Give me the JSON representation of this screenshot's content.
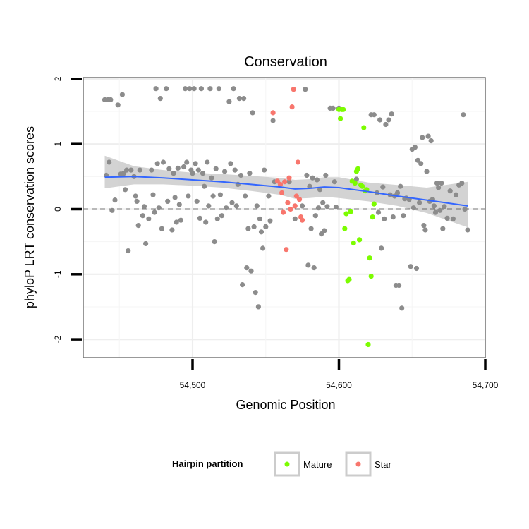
{
  "chart_data": {
    "type": "scatter",
    "title": "Conservation",
    "xlabel": "Genomic Position",
    "ylabel": "phyloP LRT conservation scores",
    "xlim": [
      54430,
      54700
    ],
    "ylim": [
      -2.3,
      2.0
    ],
    "xticks": [
      54500,
      54600,
      54700
    ],
    "xtick_labels": [
      "54,500",
      "54,600",
      "54,700"
    ],
    "yticks": [
      -2,
      -1,
      0,
      1,
      2
    ],
    "ytick_labels": [
      "-2",
      "-1",
      "0",
      "1",
      "2"
    ],
    "grid": true,
    "reference_line": {
      "y": 0,
      "style": "dashed"
    },
    "legend": {
      "title": "Hairpin partition",
      "placement": "bottom",
      "entries": [
        {
          "label": "Mature",
          "color": "#7cfc00"
        },
        {
          "label": "Star",
          "color": "#f8766d"
        }
      ]
    },
    "colors": {
      "other": "#8c8c8c",
      "Mature": "#7cfc00",
      "Star": "#f8766d",
      "smooth_line": "#3366ff",
      "band": "#c8c8c8"
    },
    "smooth": {
      "x": [
        54440,
        54460,
        54480,
        54500,
        54520,
        54540,
        54560,
        54570,
        54580,
        54590,
        54600,
        54620,
        54640,
        54660,
        54688
      ],
      "y": [
        0.49,
        0.5,
        0.48,
        0.45,
        0.42,
        0.38,
        0.34,
        0.31,
        0.32,
        0.34,
        0.33,
        0.27,
        0.2,
        0.14,
        0.05
      ],
      "lower": [
        0.32,
        0.38,
        0.38,
        0.36,
        0.33,
        0.28,
        0.22,
        0.16,
        0.17,
        0.19,
        0.17,
        0.12,
        0.05,
        -0.06,
        -0.28
      ],
      "upper": [
        0.82,
        0.66,
        0.6,
        0.56,
        0.54,
        0.51,
        0.48,
        0.45,
        0.46,
        0.49,
        0.49,
        0.41,
        0.37,
        0.33,
        0.42
      ]
    },
    "series": [
      {
        "name": "Other",
        "points": [
          [
            54440,
            1.68
          ],
          [
            54442,
            1.68
          ],
          [
            54444,
            1.68
          ],
          [
            54441,
            0.52
          ],
          [
            54443,
            0.72
          ],
          [
            54445,
            -0.02
          ],
          [
            54447,
            0.14
          ],
          [
            54449,
            1.6
          ],
          [
            54451,
            0.54
          ],
          [
            54453,
            0.55
          ],
          [
            54455,
            0.6
          ],
          [
            54454,
            0.3
          ],
          [
            54456,
            -0.64
          ],
          [
            54452,
            1.76
          ],
          [
            54458,
            0.6
          ],
          [
            54460,
            0.5
          ],
          [
            54461,
            0.2
          ],
          [
            54462,
            0.12
          ],
          [
            54463,
            -0.25
          ],
          [
            54464,
            0.6
          ],
          [
            54466,
            -0.1
          ],
          [
            54467,
            0.04
          ],
          [
            54468,
            -0.53
          ],
          [
            54470,
            -0.15
          ],
          [
            54472,
            0.6
          ],
          [
            54473,
            0.22
          ],
          [
            54474,
            -0.05
          ],
          [
            54475,
            1.85
          ],
          [
            54476,
            0.7
          ],
          [
            54477,
            0.02
          ],
          [
            54478,
            1.7
          ],
          [
            54479,
            -0.3
          ],
          [
            54480,
            0.72
          ],
          [
            54482,
            1.85
          ],
          [
            54483,
            0.12
          ],
          [
            54484,
            0.62
          ],
          [
            54486,
            -0.32
          ],
          [
            54487,
            0.55
          ],
          [
            54488,
            0.18
          ],
          [
            54489,
            -0.2
          ],
          [
            54490,
            0.63
          ],
          [
            54491,
            0.07
          ],
          [
            54492,
            -0.17
          ],
          [
            54494,
            0.65
          ],
          [
            54495,
            1.85
          ],
          [
            54496,
            0.72
          ],
          [
            54497,
            0.2
          ],
          [
            54498,
            1.85
          ],
          [
            54499,
            0.6
          ],
          [
            54500,
            0.55
          ],
          [
            54501,
            1.85
          ],
          [
            54502,
            0.7
          ],
          [
            54503,
            0.12
          ],
          [
            54504,
            0.6
          ],
          [
            54505,
            -0.14
          ],
          [
            54506,
            1.85
          ],
          [
            54507,
            0.55
          ],
          [
            54508,
            0.35
          ],
          [
            54509,
            -0.2
          ],
          [
            54510,
            0.72
          ],
          [
            54511,
            0.05
          ],
          [
            54512,
            1.85
          ],
          [
            54513,
            0.48
          ],
          [
            54514,
            0.2
          ],
          [
            54515,
            -0.5
          ],
          [
            54516,
            0.62
          ],
          [
            54517,
            -0.15
          ],
          [
            54518,
            1.85
          ],
          [
            54519,
            0.22
          ],
          [
            54520,
            -0.1
          ],
          [
            54522,
            0.58
          ],
          [
            54523,
            0.02
          ],
          [
            54525,
            1.65
          ],
          [
            54526,
            0.7
          ],
          [
            54527,
            0.1
          ],
          [
            54528,
            1.85
          ],
          [
            54529,
            0.6
          ],
          [
            54530,
            0.05
          ],
          [
            54531,
            0.38
          ],
          [
            54532,
            1.7
          ],
          [
            54533,
            0.52
          ],
          [
            54534,
            -1.16
          ],
          [
            54535,
            1.7
          ],
          [
            54536,
            0.2
          ],
          [
            54537,
            -0.9
          ],
          [
            54538,
            -0.3
          ],
          [
            54539,
            0.55
          ],
          [
            54540,
            -0.95
          ],
          [
            54541,
            1.48
          ],
          [
            54542,
            -0.27
          ],
          [
            54543,
            -1.28
          ],
          [
            54544,
            0.05
          ],
          [
            54545,
            -1.5
          ],
          [
            54546,
            -0.15
          ],
          [
            54547,
            -0.35
          ],
          [
            54548,
            -0.6
          ],
          [
            54549,
            0.6
          ],
          [
            54550,
            -0.27
          ],
          [
            54552,
            0.2
          ],
          [
            54553,
            -0.18
          ],
          [
            54555,
            1.36
          ],
          [
            54556,
            0.42
          ],
          [
            54566,
            0.42
          ],
          [
            54570,
            -0.15
          ],
          [
            54575,
            0.05
          ],
          [
            54577,
            1.84
          ],
          [
            54578,
            0.52
          ],
          [
            54579,
            -0.86
          ],
          [
            54580,
            0.35
          ],
          [
            54581,
            -0.3
          ],
          [
            54582,
            0.48
          ],
          [
            54583,
            -0.9
          ],
          [
            54584,
            -0.1
          ],
          [
            54585,
            0.45
          ],
          [
            54586,
            0.02
          ],
          [
            54587,
            0.3
          ],
          [
            54588,
            -0.38
          ],
          [
            54589,
            0.1
          ],
          [
            54590,
            -0.33
          ],
          [
            54591,
            0.52
          ],
          [
            54592,
            0.04
          ],
          [
            54594,
            1.55
          ],
          [
            54596,
            1.55
          ],
          [
            54597,
            0.42
          ],
          [
            54598,
            0.03
          ],
          [
            54600,
            1.55
          ],
          [
            54612,
            0.46
          ],
          [
            54622,
            1.45
          ],
          [
            54624,
            1.45
          ],
          [
            54626,
            0.25
          ],
          [
            54627,
            -0.05
          ],
          [
            54628,
            1.37
          ],
          [
            54629,
            -0.6
          ],
          [
            54630,
            0.34
          ],
          [
            54631,
            -0.15
          ],
          [
            54632,
            1.3
          ],
          [
            54634,
            1.37
          ],
          [
            54635,
            0.22
          ],
          [
            54636,
            1.46
          ],
          [
            54637,
            -0.12
          ],
          [
            54638,
            0.2
          ],
          [
            54639,
            -1.17
          ],
          [
            54640,
            0.25
          ],
          [
            54641,
            -1.17
          ],
          [
            54642,
            0.35
          ],
          [
            54643,
            -1.52
          ],
          [
            54644,
            -0.1
          ],
          [
            54645,
            0.16
          ],
          [
            54646,
            0.17
          ],
          [
            54648,
            0.15
          ],
          [
            54649,
            -0.88
          ],
          [
            54650,
            0.92
          ],
          [
            54651,
            0.02
          ],
          [
            54652,
            0.95
          ],
          [
            54653,
            -0.91
          ],
          [
            54654,
            0.75
          ],
          [
            54655,
            0.1
          ],
          [
            54656,
            0.7
          ],
          [
            54657,
            1.1
          ],
          [
            54658,
            -0.25
          ],
          [
            54659,
            -0.32
          ],
          [
            54660,
            0.58
          ],
          [
            54661,
            1.12
          ],
          [
            54662,
            0.12
          ],
          [
            54663,
            1.05
          ],
          [
            54664,
            0.15
          ],
          [
            54665,
            0.05
          ],
          [
            54666,
            -0.05
          ],
          [
            54667,
            0.4
          ],
          [
            54668,
            0.33
          ],
          [
            54669,
            -0.02
          ],
          [
            54670,
            0.4
          ],
          [
            54671,
            -0.3
          ],
          [
            54672,
            0.04
          ],
          [
            54674,
            -0.14
          ],
          [
            54676,
            0.28
          ],
          [
            54678,
            -0.15
          ],
          [
            54680,
            0.22
          ],
          [
            54682,
            0.37
          ],
          [
            54684,
            0.4
          ],
          [
            54685,
            1.45
          ],
          [
            54686,
            0.0
          ],
          [
            54688,
            -0.32
          ]
        ]
      },
      {
        "name": "Mature",
        "points": [
          [
            54600,
            1.53
          ],
          [
            54601,
            1.39
          ],
          [
            54602,
            1.53
          ],
          [
            54603,
            1.53
          ],
          [
            54604,
            -0.3
          ],
          [
            54605,
            -0.07
          ],
          [
            54606,
            -1.1
          ],
          [
            54607,
            -1.08
          ],
          [
            54608,
            -0.04
          ],
          [
            54609,
            0.43
          ],
          [
            54610,
            -0.52
          ],
          [
            54611,
            0.4
          ],
          [
            54612,
            0.58
          ],
          [
            54613,
            0.62
          ],
          [
            54614,
            -0.47
          ],
          [
            54615,
            0.37
          ],
          [
            54616,
            0.35
          ],
          [
            54617,
            1.25
          ],
          [
            54618,
            0.28
          ],
          [
            54619,
            0.3
          ],
          [
            54620,
            -2.08
          ],
          [
            54621,
            -0.75
          ],
          [
            54622,
            -1.03
          ],
          [
            54623,
            -0.12
          ],
          [
            54624,
            0.08
          ]
        ]
      },
      {
        "name": "Star",
        "points": [
          [
            54555,
            1.48
          ],
          [
            54558,
            0.43
          ],
          [
            54560,
            0.38
          ],
          [
            54561,
            0.25
          ],
          [
            54562,
            -0.05
          ],
          [
            54563,
            0.42
          ],
          [
            54564,
            -0.62
          ],
          [
            54565,
            0.1
          ],
          [
            54566,
            0.48
          ],
          [
            54567,
            0.0
          ],
          [
            54568,
            1.57
          ],
          [
            54569,
            1.84
          ],
          [
            54570,
            0.05
          ],
          [
            54571,
            0.2
          ],
          [
            54572,
            0.72
          ],
          [
            54573,
            0.15
          ],
          [
            54574,
            -0.12
          ],
          [
            54575,
            -0.17
          ]
        ]
      }
    ]
  }
}
